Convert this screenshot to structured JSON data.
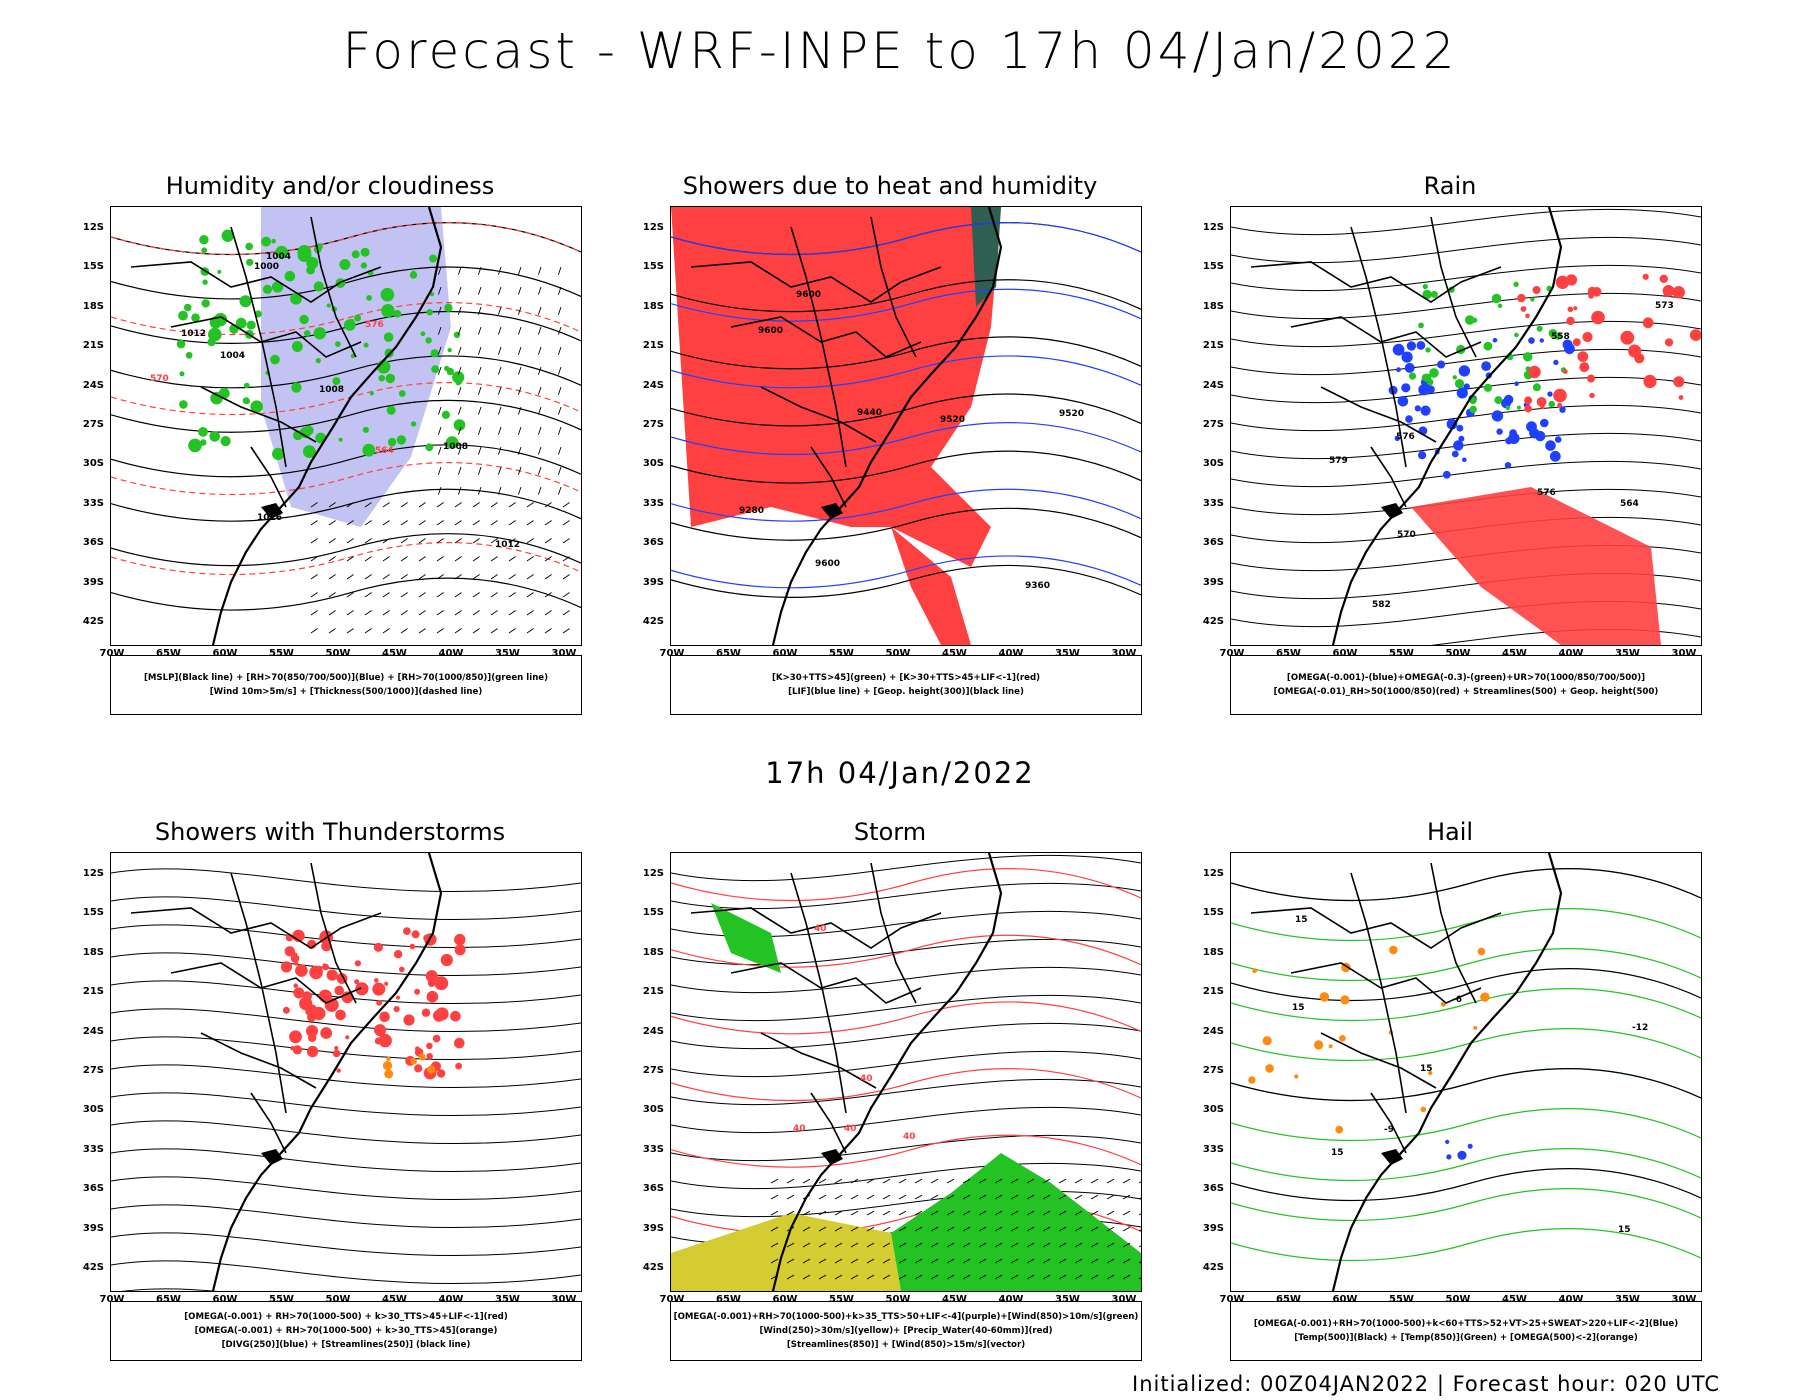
{
  "header": {
    "title": "Forecast - WRF-INPE to 17h 04/Jan/2022"
  },
  "mid_time": "17h 04/Jan/2022",
  "footer": "Initialized: 00Z04JAN2022 | Forecast hour: 020 UTC",
  "axes": {
    "lat_labels": [
      "12S",
      "15S",
      "18S",
      "21S",
      "24S",
      "27S",
      "30S",
      "33S",
      "36S",
      "39S",
      "42S"
    ],
    "lon_labels": [
      "70W",
      "65W",
      "60W",
      "55W",
      "50W",
      "45W",
      "40W",
      "35W",
      "30W"
    ]
  },
  "colors": {
    "green": "#22c322",
    "red": "#ff4040",
    "blue": "#2040ff",
    "lavender": "#b4b4f0",
    "darkgreen": "#2f5f50",
    "yellow": "#d4cc30",
    "orange": "#ff8c10",
    "purple": "#b000c0"
  },
  "panels": [
    {
      "title": "Humidity and/or cloudiness",
      "legend": [
        "[MSLP](Black line) + [RH>70(850/700/500)](Blue) + [RH>70(1000/850)](green line)",
        "[Wind 10m>5m/s] + [Thickness(500/1000)](dashed line)"
      ],
      "contour_labels": [
        "1004",
        "1012",
        "1008",
        "1000",
        "1016",
        "576",
        "570",
        "564",
        "1012",
        "1008",
        "1004"
      ]
    },
    {
      "title": "Showers due to heat and humidity",
      "legend": [
        "[K>30+TTS>45](green) + [K>30+TTS>45+LIF<-1](red)",
        "[LIF](blue line) + [Geop. height(300)](black line)"
      ],
      "contour_labels": [
        "9600",
        "9520",
        "9440",
        "9360",
        "9280",
        "9600",
        "9520",
        "9600"
      ]
    },
    {
      "title": "Rain",
      "legend": [
        "[OMEGA(-0.001)-(blue)+OMEGA(-0.3)-(green)+UR>70(1000/850/700/500)]",
        "[OMEGA(-0.01)_RH>50(1000/850)(red) + Streamlines(500) + Geop. height(500)"
      ],
      "contour_labels": [
        "582",
        "576",
        "576",
        "570",
        "564",
        "558",
        "579",
        "573"
      ]
    },
    {
      "title": "Showers with Thunderstorms",
      "legend": [
        "[OMEGA(-0.001) + RH>70(1000-500) + k>30_TTS>45+LIF<-1](red)",
        "[OMEGA(-0.001) + RH>70(1000-500) + k>30_TTS>45](orange)",
        "[DIVG(250)](blue) + [Streamlines(250)] (black line)"
      ],
      "contour_labels": []
    },
    {
      "title": "Storm",
      "legend": [
        "[OMEGA(-0.001)+RH>70(1000-500)+k>35_TTS>50+LIF<-4](purple)+[Wind(850)>10m/s](green)",
        "[Wind(250)>30m/s](yellow)+ [Precip_Water(40-60mm)](red)",
        "[Streamlines(850)] + [Wind(850)>15m/s](vector)"
      ],
      "contour_labels": [
        "40",
        "40",
        "40",
        "40",
        "40"
      ]
    },
    {
      "title": "Hail",
      "legend": [
        "[OMEGA(-0.001)+RH>70(1000-500)+k<60+TTS>52+VT>25+SWEAT>220+LIF<-2](Blue)",
        "[Temp(500)](Black) + [Temp(850)](Green) + [OMEGA(500)<-2](orange)"
      ],
      "contour_labels": [
        "15",
        "15",
        "15",
        "-12",
        "-9",
        "-6",
        "15",
        "15"
      ]
    }
  ]
}
